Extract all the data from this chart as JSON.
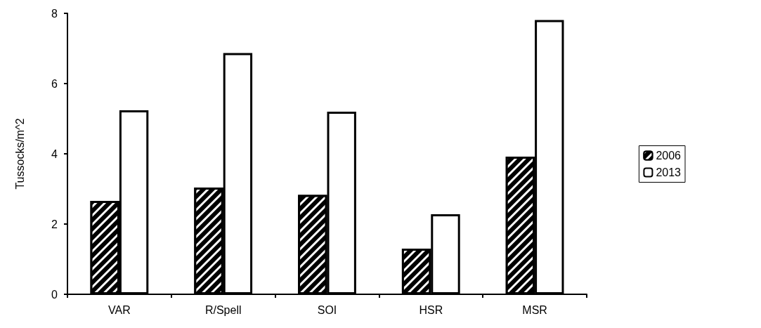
{
  "chart_data": {
    "type": "bar",
    "ylabel": "Tussocks/m^2",
    "categories": [
      "VAR",
      "R/Spell",
      "SOI",
      "HSR",
      "MSR"
    ],
    "series": [
      {
        "name": "2006",
        "color": "#000000",
        "values": [
          2.66,
          3.04,
          2.83,
          1.3,
          3.92
        ]
      },
      {
        "name": "2013",
        "color": "#ffffff",
        "values": [
          5.24,
          6.87,
          5.2,
          2.28,
          7.81
        ]
      }
    ],
    "ylim": [
      0,
      8
    ],
    "yticks": [
      0,
      2,
      4,
      6,
      8
    ],
    "grid": false,
    "legend": "right"
  }
}
